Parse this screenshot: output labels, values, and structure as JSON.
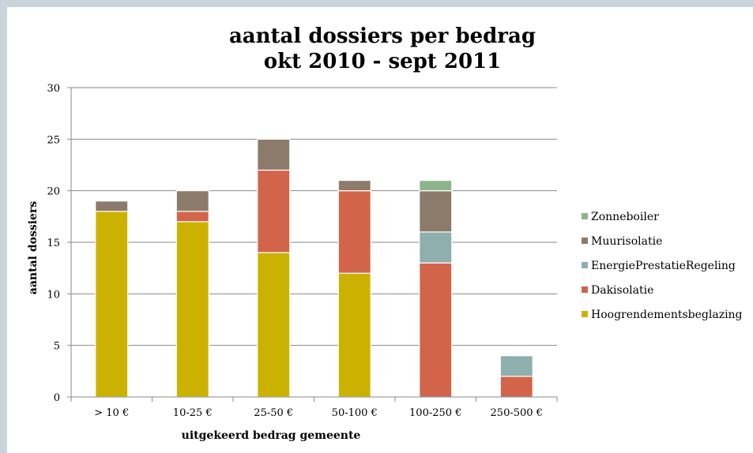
{
  "chart_data": {
    "type": "bar",
    "stacked": true,
    "title": "aantal dossiers per bedrag",
    "subtitle": "okt 2010 - sept 2011",
    "xlabel": "uitgekeerd bedrag gemeente",
    "ylabel": "aantal dossiers",
    "ylim": [
      0,
      30
    ],
    "yticks": [
      0,
      5,
      10,
      15,
      20,
      25,
      30
    ],
    "grid": true,
    "legend_position": "right",
    "categories": [
      "> 10 €",
      "10-25 €",
      "25-50 €",
      "50-100 €",
      "100-250 €",
      "250-500 €"
    ],
    "series": [
      {
        "name": "Hoogrendementsbeglazing",
        "color": "#cbb200",
        "values": [
          18,
          17,
          14,
          12,
          0,
          0
        ]
      },
      {
        "name": "Dakisolatie",
        "color": "#d2644a",
        "values": [
          0,
          1,
          8,
          8,
          13,
          2
        ]
      },
      {
        "name": "EnergiePrestatieRegeling",
        "color": "#8faeae",
        "values": [
          0,
          0,
          0,
          0,
          3,
          2
        ]
      },
      {
        "name": "Muurisolatie",
        "color": "#8c7b6b",
        "values": [
          1,
          2,
          3,
          1,
          4,
          0
        ]
      },
      {
        "name": "Zonneboiler",
        "color": "#8db58a",
        "values": [
          0,
          0,
          0,
          0,
          1,
          0
        ]
      }
    ]
  }
}
